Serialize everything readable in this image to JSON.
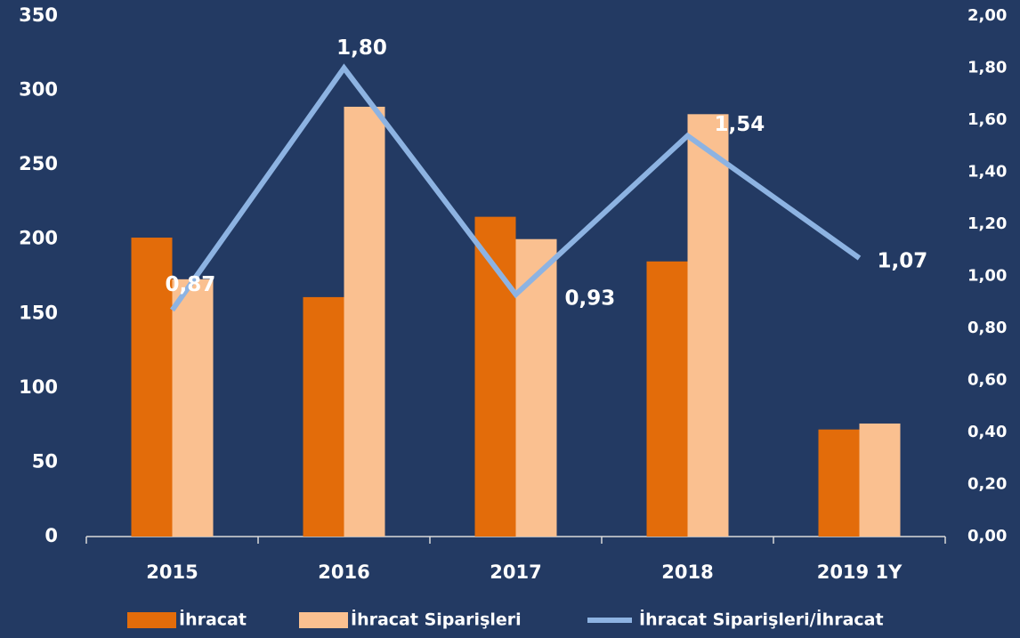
{
  "chart_data": {
    "type": "bar",
    "categories": [
      "2015",
      "2016",
      "2017",
      "2018",
      "2019 1Y"
    ],
    "series": [
      {
        "name": "İhracat",
        "color": "#e36c0a",
        "values": [
          201,
          161,
          215,
          185,
          72
        ]
      },
      {
        "name": "İhracat Siparişleri",
        "color": "#fac090",
        "values": [
          173,
          289,
          200,
          284,
          76
        ]
      },
      {
        "name": "İhracat Siparişleri/İhracat",
        "color": "#8db3e2",
        "type": "line",
        "axis": "y2",
        "values": [
          0.87,
          1.8,
          0.93,
          1.54,
          1.07
        ],
        "value_labels": [
          "0,87",
          "1,80",
          "0,93",
          "1,54",
          "1,07"
        ]
      }
    ],
    "ylim": [
      0,
      350
    ],
    "yticks": [
      0,
      50,
      100,
      150,
      200,
      250,
      300,
      350
    ],
    "y2lim": [
      0,
      2
    ],
    "y2ticks": [
      {
        "value": 0,
        "label": "0,00"
      },
      {
        "value": 0.2,
        "label": "0,20"
      },
      {
        "value": 0.4,
        "label": "0,40"
      },
      {
        "value": 0.6,
        "label": "0,60"
      },
      {
        "value": 0.8,
        "label": "0,80"
      },
      {
        "value": 1.0,
        "label": "1,00"
      },
      {
        "value": 1.2,
        "label": "1,20"
      },
      {
        "value": 1.4,
        "label": "1,40"
      },
      {
        "value": 1.6,
        "label": "1,60"
      },
      {
        "value": 1.8,
        "label": "1,80"
      },
      {
        "value": 2.0,
        "label": "2,00"
      }
    ],
    "grid": false,
    "legend": "bottom"
  }
}
